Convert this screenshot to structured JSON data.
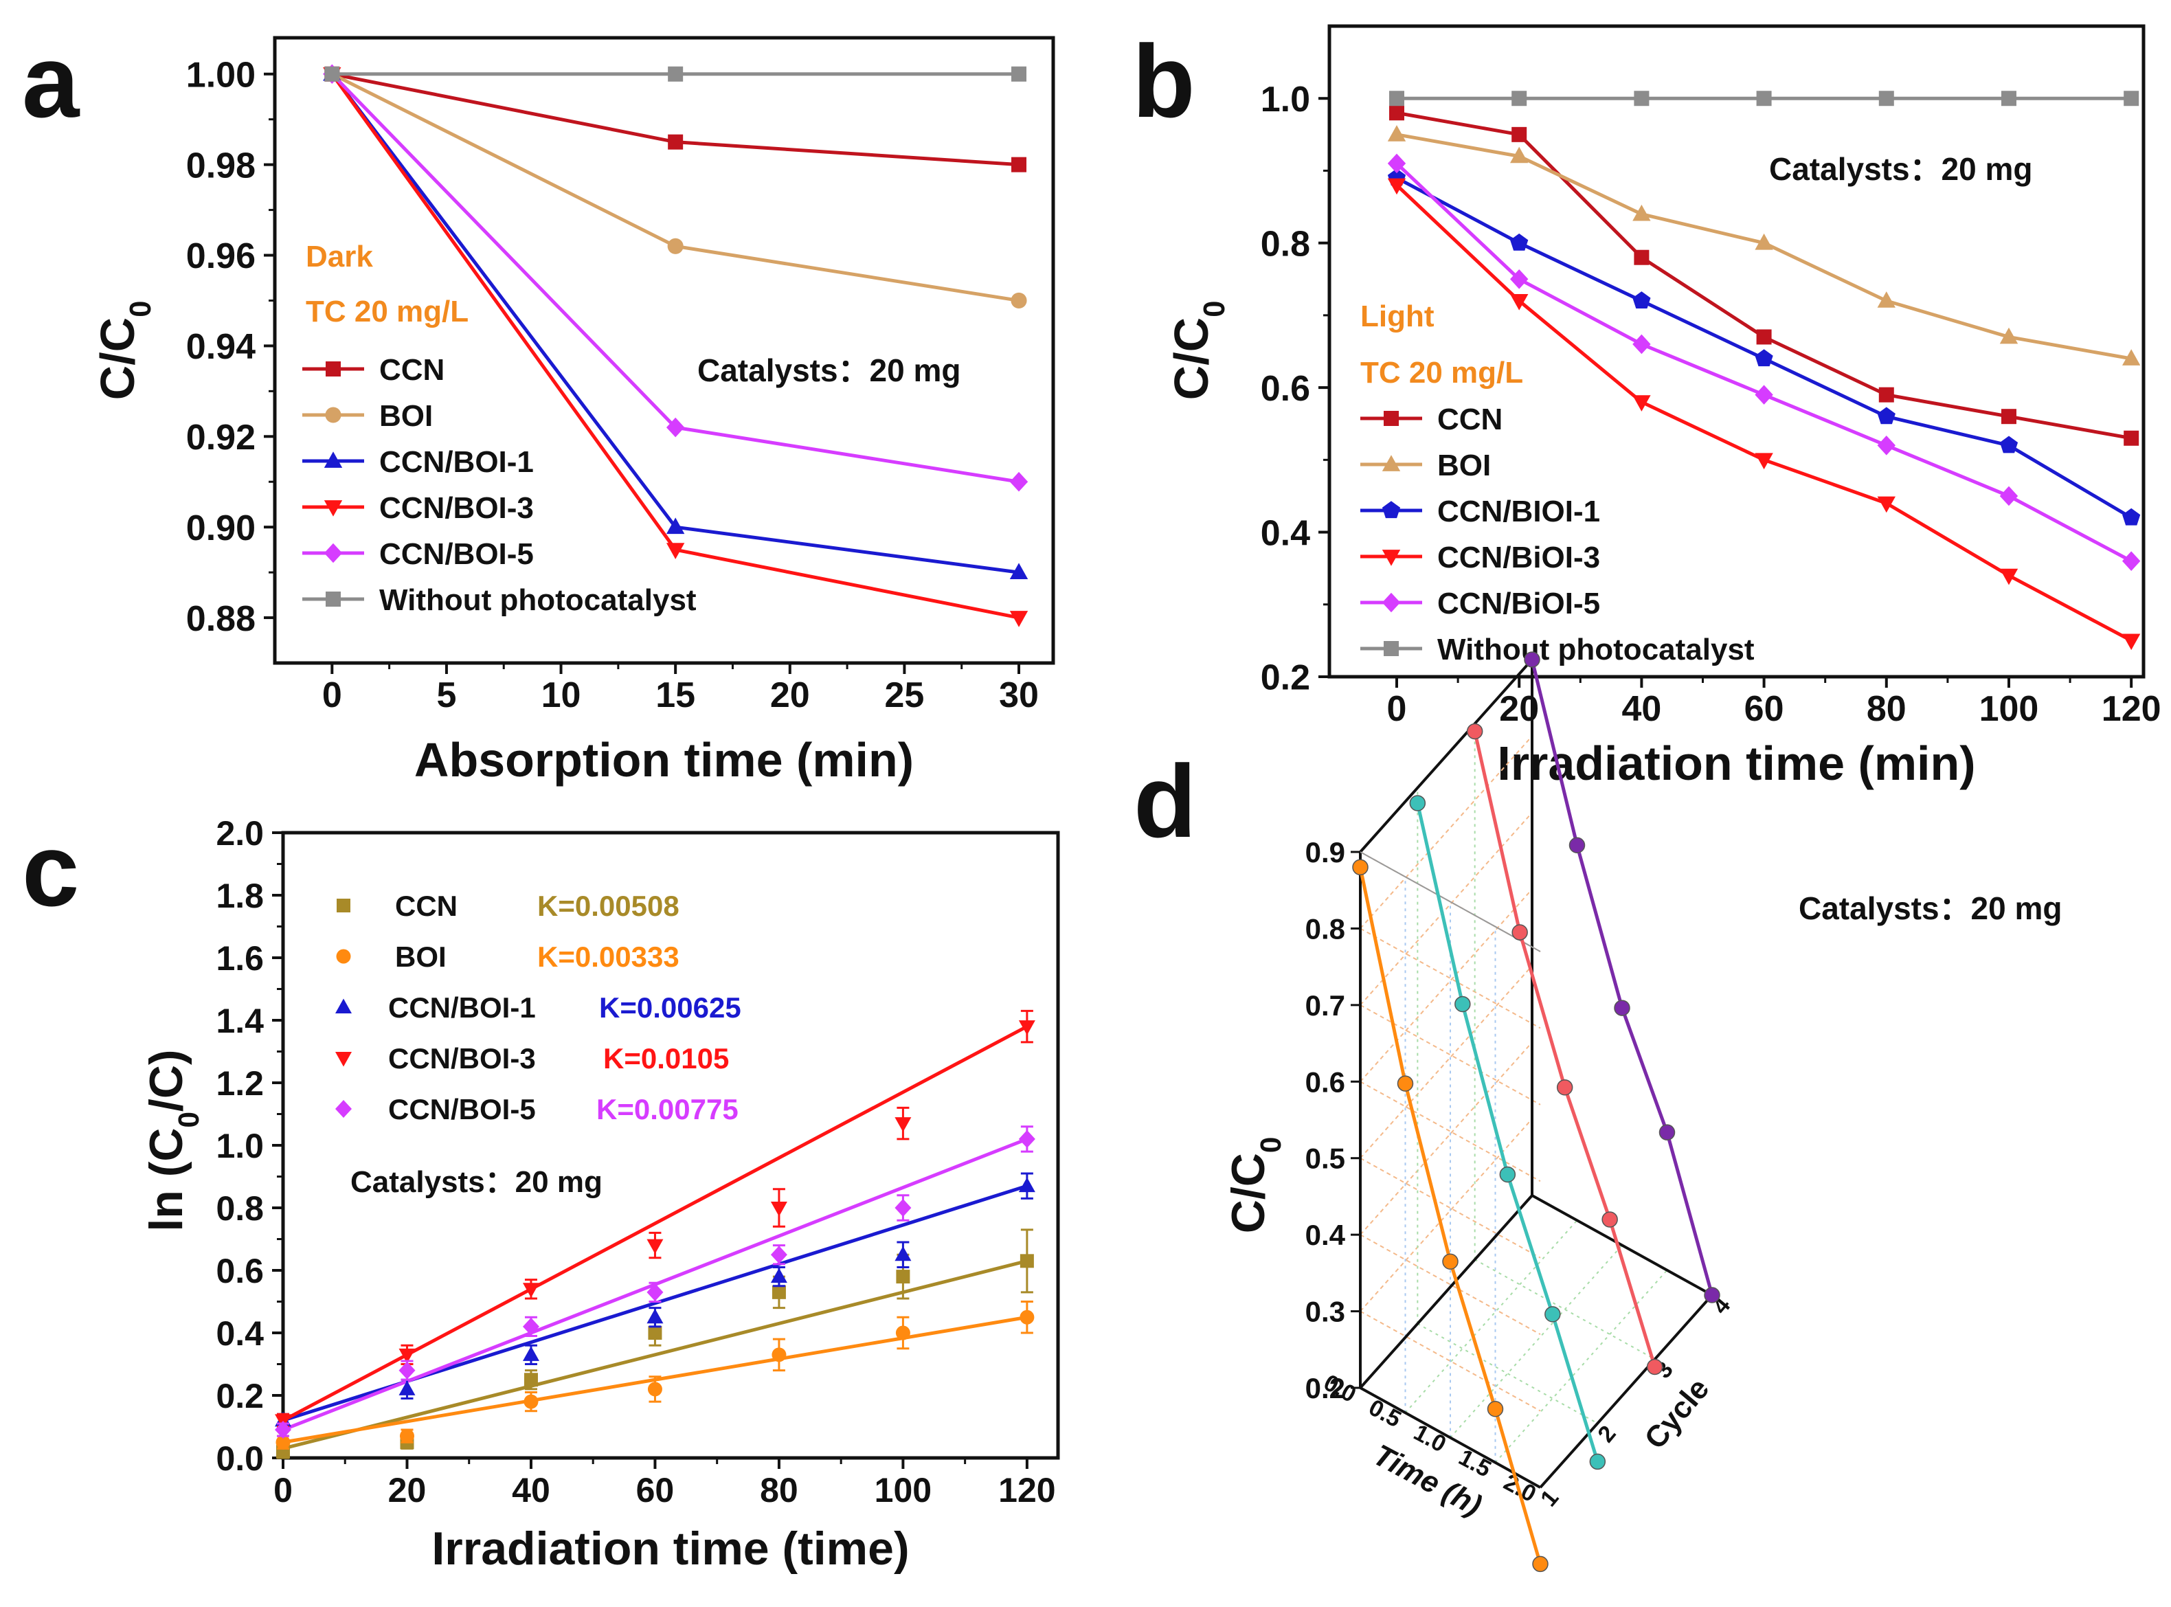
{
  "colors": {
    "dark_red": "#c0141e",
    "tan": "#d6a265",
    "blue": "#1a1ad0",
    "red": "#ff1414",
    "magenta": "#d63cff",
    "gray": "#8c8c8c",
    "olive": "#a88a28",
    "orange": "#ff8a10",
    "annot_orange": "#f28a1e",
    "teal": "#3cc0b8",
    "salmon": "#f05a60",
    "purple": "#7a2aa8"
  },
  "chart_data": [
    {
      "panel": "a",
      "type": "line",
      "xlabel": "Absorption time (min)",
      "ylabel": "C/C0",
      "xlim": [
        -2.5,
        31.5
      ],
      "ylim": [
        0.87,
        1.008
      ],
      "xticks": [
        0,
        5,
        10,
        15,
        20,
        25,
        30
      ],
      "yticks": [
        0.88,
        0.9,
        0.92,
        0.94,
        0.96,
        0.98,
        1.0
      ],
      "ytick_labels": [
        "0.88",
        "0.90",
        "0.92",
        "0.94",
        "0.96",
        "0.98",
        "1.00"
      ],
      "x": [
        0,
        15,
        30
      ],
      "annotations": [
        "Dark",
        "TC 20 mg/L",
        "Catalysts：20 mg"
      ],
      "series": [
        {
          "name": "CCN",
          "color": "#c0141e",
          "marker": "square",
          "values": [
            1.0,
            0.985,
            0.98
          ]
        },
        {
          "name": "BOI",
          "color": "#d6a265",
          "marker": "circle",
          "values": [
            1.0,
            0.962,
            0.95
          ]
        },
        {
          "name": "CCN/BOI-1",
          "color": "#1a1ad0",
          "marker": "triangle-up",
          "values": [
            1.0,
            0.9,
            0.89
          ]
        },
        {
          "name": "CCN/BOI-3",
          "color": "#ff1414",
          "marker": "triangle-down",
          "values": [
            1.0,
            0.895,
            0.88
          ]
        },
        {
          "name": "CCN/BOI-5",
          "color": "#d63cff",
          "marker": "diamond",
          "values": [
            1.0,
            0.922,
            0.91
          ]
        },
        {
          "name": "Without photocatalyst",
          "color": "#8c8c8c",
          "marker": "square",
          "values": [
            1.0,
            1.0,
            1.0
          ]
        }
      ]
    },
    {
      "panel": "b",
      "type": "line",
      "xlabel": "Irradiation time (min)",
      "ylabel": "C/C0",
      "xlim": [
        -11,
        122
      ],
      "ylim": [
        0.2,
        1.1
      ],
      "xticks": [
        0,
        20,
        40,
        60,
        80,
        100,
        120
      ],
      "yticks": [
        0.2,
        0.4,
        0.6,
        0.8,
        1.0
      ],
      "ytick_labels": [
        "0.2",
        "0.4",
        "0.6",
        "0.8",
        "1.0"
      ],
      "x": [
        0,
        20,
        40,
        60,
        80,
        100,
        120
      ],
      "annotations": [
        "Light",
        "TC 20 mg/L",
        "Catalysts：20 mg"
      ],
      "series": [
        {
          "name": "CCN",
          "color": "#c0141e",
          "marker": "square",
          "values": [
            0.98,
            0.95,
            0.78,
            0.67,
            0.59,
            0.56,
            0.53
          ]
        },
        {
          "name": "BOI",
          "color": "#d6a265",
          "marker": "triangle-up",
          "values": [
            0.95,
            0.92,
            0.84,
            0.8,
            0.72,
            0.67,
            0.64
          ]
        },
        {
          "name": "CCN/BIOI-1",
          "color": "#1a1ad0",
          "marker": "pentagon",
          "values": [
            0.89,
            0.8,
            0.72,
            0.64,
            0.56,
            0.52,
            0.42
          ]
        },
        {
          "name": "CCN/BiOI-3",
          "color": "#ff1414",
          "marker": "triangle-down",
          "values": [
            0.88,
            0.72,
            0.58,
            0.5,
            0.44,
            0.34,
            0.25
          ]
        },
        {
          "name": "CCN/BiOI-5",
          "color": "#d63cff",
          "marker": "diamond",
          "values": [
            0.91,
            0.75,
            0.66,
            0.59,
            0.52,
            0.45,
            0.36
          ]
        },
        {
          "name": "Without photocatalyst",
          "color": "#8c8c8c",
          "marker": "square",
          "values": [
            1.0,
            1.0,
            1.0,
            1.0,
            1.0,
            1.0,
            1.0
          ]
        }
      ]
    },
    {
      "panel": "c",
      "type": "scatter",
      "xlabel": "Irradiation time (time)",
      "ylabel": "ln (C0/C)",
      "xlim": [
        0,
        125
      ],
      "ylim": [
        0,
        2.0
      ],
      "xticks": [
        0,
        20,
        40,
        60,
        80,
        100,
        120
      ],
      "yticks": [
        0.0,
        0.2,
        0.4,
        0.6,
        0.8,
        1.0,
        1.2,
        1.4,
        1.6,
        1.8,
        2.0
      ],
      "ytick_labels": [
        "0.0",
        "0.2",
        "0.4",
        "0.6",
        "0.8",
        "1.0",
        "1.2",
        "1.4",
        "1.6",
        "1.8",
        "2.0"
      ],
      "x": [
        0,
        20,
        40,
        60,
        80,
        100,
        120
      ],
      "annotations": [
        "Catalysts：20 mg"
      ],
      "series": [
        {
          "name": "CCN",
          "k_label": "K=0.00508",
          "color": "#a88a28",
          "marker": "square",
          "values": [
            0.02,
            0.05,
            0.25,
            0.4,
            0.53,
            0.58,
            0.63
          ],
          "errors": [
            0.02,
            0.02,
            0.03,
            0.04,
            0.05,
            0.07,
            0.1
          ],
          "fit": [
            0.03,
            0.63
          ]
        },
        {
          "name": "BOI",
          "k_label": "K=0.00333",
          "color": "#ff8a10",
          "marker": "circle",
          "values": [
            0.05,
            0.07,
            0.18,
            0.22,
            0.33,
            0.4,
            0.45
          ],
          "errors": [
            0.02,
            0.02,
            0.03,
            0.04,
            0.05,
            0.05,
            0.05
          ],
          "fit": [
            0.05,
            0.45
          ]
        },
        {
          "name": "CCN/BOI-1",
          "k_label": "K=0.00625",
          "color": "#1a1ad0",
          "marker": "triangle-up",
          "values": [
            0.12,
            0.22,
            0.33,
            0.45,
            0.58,
            0.65,
            0.87
          ],
          "errors": [
            0.02,
            0.03,
            0.03,
            0.03,
            0.03,
            0.04,
            0.04
          ],
          "fit": [
            0.12,
            0.87
          ]
        },
        {
          "name": "CCN/BOI-3",
          "k_label": "K=0.0105",
          "color": "#ff1414",
          "marker": "triangle-down",
          "values": [
            0.12,
            0.33,
            0.54,
            0.68,
            0.8,
            1.07,
            1.38
          ],
          "errors": [
            0.02,
            0.03,
            0.03,
            0.04,
            0.06,
            0.05,
            0.05
          ],
          "fit": [
            0.12,
            1.38
          ]
        },
        {
          "name": "CCN/BOI-5",
          "k_label": "K=0.00775",
          "color": "#d63cff",
          "marker": "diamond",
          "values": [
            0.09,
            0.28,
            0.42,
            0.53,
            0.65,
            0.8,
            1.02
          ],
          "errors": [
            0.02,
            0.03,
            0.03,
            0.03,
            0.03,
            0.04,
            0.04
          ],
          "fit": [
            0.09,
            1.02
          ]
        }
      ]
    },
    {
      "panel": "d",
      "type": "line",
      "subtype": "3d-line",
      "zlabel": "C/C0",
      "xlabel": "Time (h)",
      "ylabel": "Cycle",
      "zticks": [
        0.2,
        0.3,
        0.4,
        0.5,
        0.6,
        0.7,
        0.8,
        0.9
      ],
      "ztick_labels": [
        "0.2",
        "0.3",
        "0.4",
        "0.5",
        "0.6",
        "0.7",
        "0.8",
        "0.9"
      ],
      "xticks": [
        "0.0",
        "0.5",
        "1.0",
        "1.5",
        "2.0"
      ],
      "yticks": [
        "1",
        "2",
        "3",
        "4"
      ],
      "x": [
        0,
        0.5,
        1.0,
        1.5,
        2.0
      ],
      "annotations": [
        "Catalysts：20 mg"
      ],
      "series": [
        {
          "name": "Cycle 1",
          "cycle": 1,
          "color": "#ff8a10",
          "values": [
            0.88,
            0.63,
            0.43,
            0.27,
            0.1
          ]
        },
        {
          "name": "Cycle 2",
          "cycle": 2,
          "color": "#3cc0b8",
          "values": [
            0.88,
            0.65,
            0.46,
            0.31,
            0.15
          ]
        },
        {
          "name": "Cycle 3",
          "cycle": 3,
          "color": "#f05a60",
          "values": [
            0.89,
            0.66,
            0.49,
            0.35,
            0.19
          ]
        },
        {
          "name": "Cycle 4",
          "cycle": 4,
          "color": "#7a2aa8",
          "values": [
            0.9,
            0.69,
            0.51,
            0.38,
            0.2
          ]
        }
      ]
    }
  ],
  "panel_labels": [
    "a",
    "b",
    "c",
    "d"
  ],
  "c0_subscript": "0"
}
